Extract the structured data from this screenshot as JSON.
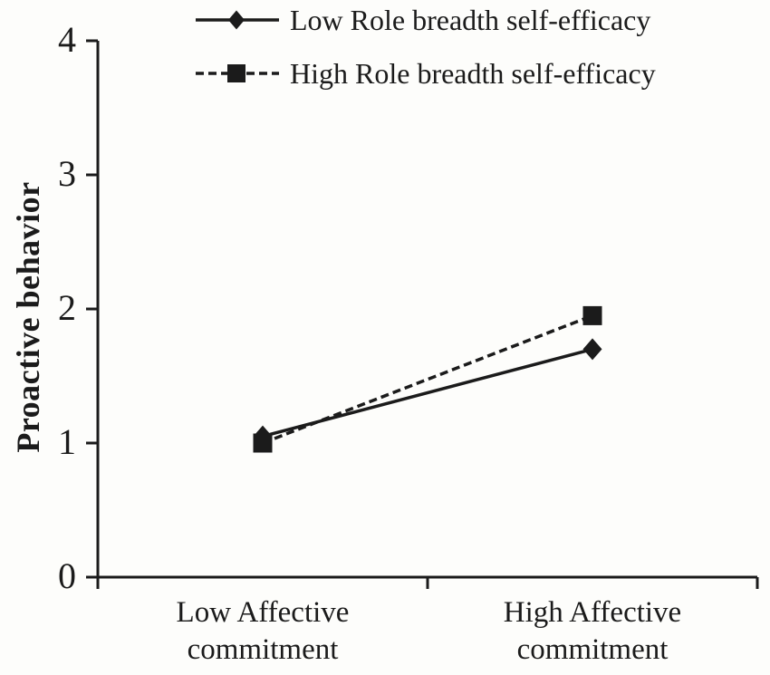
{
  "figure": {
    "background": "#fdfdfb",
    "ink": "#1b1b1b"
  },
  "chart_data": {
    "type": "line",
    "title": "",
    "xlabel": "",
    "ylabel": "Proactive behavior",
    "ylim": [
      0,
      4
    ],
    "yticks": [
      0,
      1,
      2,
      3,
      4
    ],
    "grid": false,
    "legend_position": "top",
    "categories": [
      [
        "Low Affective",
        "commitment"
      ],
      [
        "High Affective",
        "commitment"
      ]
    ],
    "series": [
      {
        "name": "Low Role breadth self-efficacy",
        "line": "solid",
        "marker": "diamond",
        "values": [
          1.05,
          1.7
        ]
      },
      {
        "name": "High Role breadth self-efficacy",
        "line": "dashed",
        "marker": "square",
        "values": [
          1.0,
          1.95
        ]
      }
    ]
  }
}
